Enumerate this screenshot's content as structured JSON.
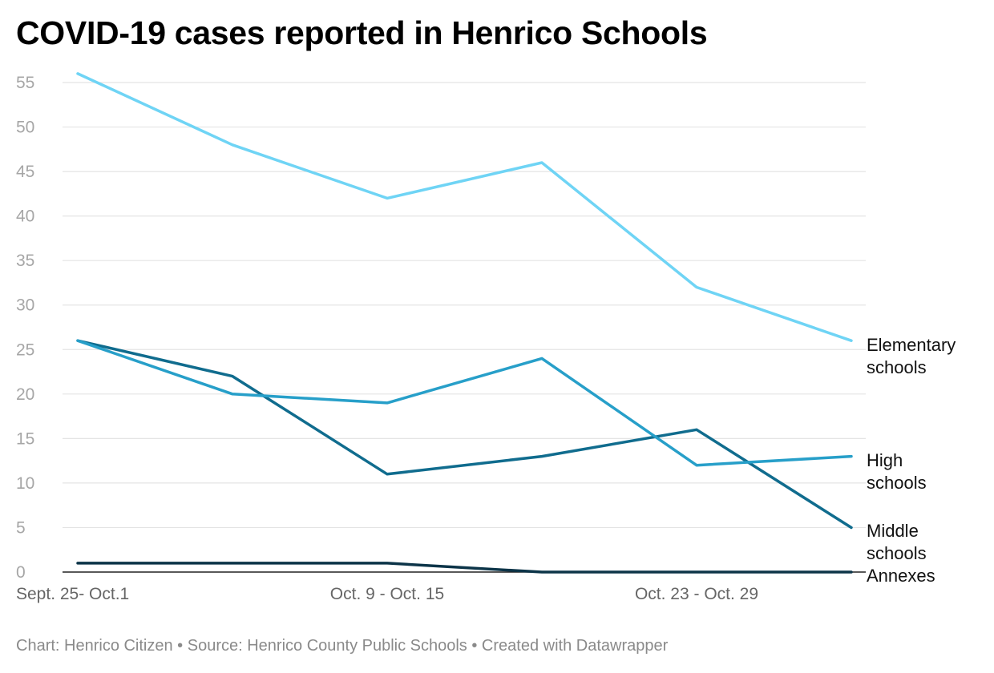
{
  "title": "COVID-19 cases reported in Henrico Schools",
  "footer": "Chart: Henrico Citizen • Source: Henrico County Public Schools • Created with Datawrapper",
  "chart_data": {
    "type": "line",
    "title": "COVID-19 cases reported in Henrico Schools",
    "xlabel": "",
    "ylabel": "",
    "x": [
      "Sept. 25- Oct.1",
      "",
      "Oct. 9 - Oct. 15",
      "",
      "Oct. 23 - Oct. 29",
      ""
    ],
    "x_tick_labels": [
      "Sept. 25- Oct.1",
      "Oct. 9 - Oct. 15",
      "Oct. 23 - Oct. 29"
    ],
    "y_ticks": [
      0,
      5,
      10,
      15,
      20,
      25,
      30,
      35,
      40,
      45,
      50,
      55
    ],
    "ylim": [
      0,
      55
    ],
    "grid": true,
    "legend": "direct labels at right end of lines",
    "series": [
      {
        "name": "Elementary schools",
        "label_lines": [
          "Elementary",
          "schools"
        ],
        "color": "#6fd4f5",
        "values": [
          56,
          48,
          42,
          46,
          32,
          26
        ]
      },
      {
        "name": "High schools",
        "label_lines": [
          "High",
          "schools"
        ],
        "color": "#279fc9",
        "values": [
          26,
          20,
          19,
          24,
          12,
          13
        ]
      },
      {
        "name": "Middle schools",
        "label_lines": [
          "Middle",
          "schools"
        ],
        "color": "#106c8e",
        "values": [
          26,
          22,
          11,
          13,
          16,
          5
        ]
      },
      {
        "name": "Annexes",
        "label_lines": [
          "Annexes"
        ],
        "color": "#0c3448",
        "values": [
          1,
          1,
          1,
          0,
          0,
          0
        ]
      }
    ]
  }
}
